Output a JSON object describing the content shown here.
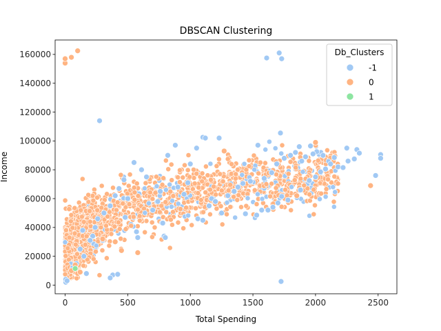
{
  "chart_data": {
    "type": "scatter",
    "title": "DBSCAN Clustering",
    "xlabel": "Total Spending",
    "ylabel": "Income",
    "xlim": [
      -80,
      2650
    ],
    "ylim": [
      -6000,
      170000
    ],
    "xticks": [
      0,
      500,
      1000,
      1500,
      2000,
      2500
    ],
    "xtick_labels": [
      "0",
      "500",
      "1000",
      "1500",
      "2000",
      "2500"
    ],
    "yticks": [
      0,
      20000,
      40000,
      60000,
      80000,
      100000,
      120000,
      140000,
      160000
    ],
    "ytick_labels": [
      "0",
      "20000",
      "40000",
      "60000",
      "80000",
      "100000",
      "120000",
      "140000",
      "160000"
    ],
    "grid": false,
    "legend": {
      "title": "Db_Clusters",
      "placement": "top-right"
    },
    "series": [
      {
        "name": "-1",
        "color": "#a1c9f4",
        "points": [
          [
            5,
            2000
          ],
          [
            5,
            4000
          ],
          [
            15,
            3000
          ],
          [
            275,
            114000
          ],
          [
            1720,
            105500
          ],
          [
            1725,
            2500
          ],
          [
            1610,
            157500
          ],
          [
            1710,
            161000
          ],
          [
            1730,
            157000
          ],
          [
            1100,
            102500
          ],
          [
            1120,
            102000
          ],
          [
            1230,
            102000
          ],
          [
            1540,
            97000
          ],
          [
            1870,
            96000
          ],
          [
            1960,
            96500
          ],
          [
            2010,
            92500
          ],
          [
            2250,
            95000
          ],
          [
            2330,
            94000
          ],
          [
            2520,
            90500
          ],
          [
            2520,
            88000
          ],
          [
            2480,
            76000
          ],
          [
            380,
            7000
          ],
          [
            360,
            5000
          ],
          [
            420,
            7500
          ],
          [
            170,
            8000
          ],
          [
            1440,
            49500
          ],
          [
            1530,
            48500
          ],
          [
            1250,
            50000
          ],
          [
            1780,
            59000
          ],
          [
            1880,
            66000
          ],
          [
            1950,
            72500
          ],
          [
            2000,
            75000
          ],
          [
            2040,
            78500
          ],
          [
            2080,
            80500
          ],
          [
            2120,
            84000
          ],
          [
            2180,
            82000
          ],
          [
            2220,
            81500
          ],
          [
            2260,
            86000
          ],
          [
            2310,
            87500
          ],
          [
            2350,
            91500
          ],
          [
            1570,
            52000
          ],
          [
            1620,
            52000
          ],
          [
            1660,
            54000
          ],
          [
            1700,
            57000
          ],
          [
            1730,
            61500
          ],
          [
            1420,
            70500
          ],
          [
            1480,
            72000
          ],
          [
            1590,
            74000
          ],
          [
            1650,
            78000
          ],
          [
            1690,
            84000
          ],
          [
            1750,
            88000
          ],
          [
            1800,
            90000
          ],
          [
            1840,
            92000
          ],
          [
            1890,
            86000
          ],
          [
            1920,
            89000
          ],
          [
            1980,
            91000
          ],
          [
            2060,
            90000
          ],
          [
            2150,
            88500
          ],
          [
            1050,
            95000
          ],
          [
            1000,
            84000
          ],
          [
            880,
            97000
          ],
          [
            820,
            90000
          ],
          [
            650,
            75000
          ],
          [
            610,
            80000
          ],
          [
            550,
            85000
          ],
          [
            470,
            73000
          ],
          [
            430,
            67000
          ],
          [
            400,
            62000
          ],
          [
            360,
            55000
          ],
          [
            310,
            50000
          ],
          [
            260,
            46000
          ],
          [
            240,
            40000
          ],
          [
            220,
            34000
          ],
          [
            200,
            31000
          ],
          [
            300,
            31000
          ],
          [
            580,
            33000
          ],
          [
            570,
            37000
          ],
          [
            790,
            34000
          ],
          [
            800,
            33000
          ],
          [
            780,
            43000
          ],
          [
            1060,
            46000
          ],
          [
            1100,
            45000
          ],
          [
            1150,
            55000
          ],
          [
            1170,
            60000
          ],
          [
            1200,
            58000
          ],
          [
            1300,
            62000
          ],
          [
            1350,
            65000
          ],
          [
            1380,
            68000
          ],
          [
            900,
            68000
          ],
          [
            950,
            63000
          ],
          [
            980,
            71000
          ],
          [
            700,
            52000
          ],
          [
            740,
            58000
          ],
          [
            760,
            65000
          ],
          [
            500,
            60000
          ],
          [
            480,
            47000
          ],
          [
            120,
            25000
          ],
          [
            150,
            20000
          ],
          [
            90,
            15000
          ],
          [
            60,
            12000
          ],
          [
            140,
            38000
          ]
        ]
      },
      {
        "name": "0",
        "color": "#ffb482",
        "points": [
          [
            0,
            154000
          ],
          [
            0,
            157000
          ],
          [
            50,
            158000
          ],
          [
            100,
            162500
          ],
          [
            2440,
            69000
          ],
          [
            2000,
            99000
          ],
          [
            1270,
            93000
          ],
          [
            1850,
            62000
          ],
          [
            400,
            30000
          ],
          [
            580,
            22500
          ],
          [
            450,
            24000
          ],
          [
            300,
            32000
          ],
          [
            100,
            8000
          ],
          [
            50,
            10000
          ],
          [
            80,
            14000
          ],
          [
            120,
            9000
          ]
        ]
      },
      {
        "name": "1",
        "color": "#8de5a1",
        "points": [
          [
            80,
            11500
          ]
        ]
      }
    ]
  }
}
